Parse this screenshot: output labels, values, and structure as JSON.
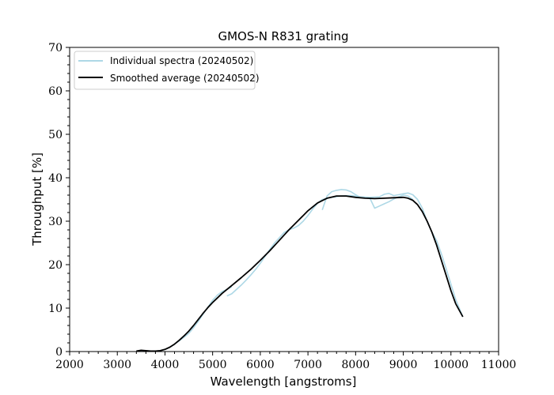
{
  "chart_data": {
    "type": "line",
    "title": "GMOS-N R831 grating",
    "xlabel": "Wavelength [angstroms]",
    "ylabel": "Throughput [%]",
    "xlim": [
      2000,
      11000
    ],
    "ylim": [
      0,
      70
    ],
    "xticks": [
      2000,
      3000,
      4000,
      5000,
      6000,
      7000,
      8000,
      9000,
      10000,
      11000
    ],
    "yticks": [
      0,
      10,
      20,
      30,
      40,
      50,
      60,
      70
    ],
    "grid": false,
    "legend_position": "top-left",
    "series": [
      {
        "name": "Individual spectra (20240502)",
        "color": "#add8e6",
        "segments": [
          {
            "x": [
              3400,
              3500,
              3600,
              3700,
              3800,
              3900,
              4000,
              4100,
              4200,
              4300,
              4400,
              4500,
              4600,
              4700,
              4800,
              4900,
              5000,
              5100,
              5200,
              5300,
              5400
            ],
            "y": [
              0.1,
              0.2,
              0.2,
              0.1,
              0.1,
              0.2,
              0.5,
              1.0,
              1.7,
              2.5,
              3.3,
              4.2,
              5.5,
              7.0,
              8.6,
              10.2,
              11.8,
              13.0,
              13.8,
              14.3,
              14.9
            ]
          },
          {
            "x": [
              5300,
              5400,
              5500,
              5600,
              5700,
              5800,
              5900,
              6000,
              6100,
              6200,
              6300,
              6400,
              6500,
              6600,
              6700,
              6800,
              6900,
              7000,
              7100,
              7200,
              7300
            ],
            "y": [
              12.8,
              13.3,
              14.3,
              15.3,
              16.4,
              17.6,
              18.9,
              20.3,
              21.9,
              23.5,
              25.0,
              26.2,
              27.4,
              28.0,
              28.4,
              29.0,
              30.0,
              31.3,
              32.8,
              34.1,
              35.0
            ]
          },
          {
            "x": [
              7300,
              7400,
              7500,
              7600,
              7700,
              7800,
              7900,
              8000,
              8100,
              8200,
              8300,
              8400,
              8500,
              8600,
              8700,
              8800,
              8900,
              9000,
              9100,
              9200
            ],
            "y": [
              32.6,
              35.8,
              36.8,
              37.1,
              37.3,
              37.2,
              36.8,
              36.1,
              35.5,
              35.4,
              35.3,
              33.0,
              33.5,
              34.0,
              34.5,
              35.1,
              35.6,
              36.0,
              35.8,
              35.0
            ]
          },
          {
            "x": [
              7300,
              7500,
              7700,
              7900,
              8100,
              8300,
              8500,
              8600,
              8700,
              8800,
              8900,
              9000,
              9100,
              9200,
              9300,
              9400,
              9500,
              9600,
              9700,
              9800,
              9900,
              10000,
              10100,
              10250
            ],
            "y": [
              35.0,
              35.5,
              35.8,
              35.9,
              35.6,
              35.5,
              35.6,
              36.2,
              36.4,
              35.9,
              36.1,
              36.3,
              36.5,
              36.1,
              35.0,
              33.0,
              30.0,
              27.5,
              25.5,
              22.5,
              19.0,
              15.5,
              12.0,
              8.0
            ]
          }
        ]
      },
      {
        "name": "Smoothed average (20240502)",
        "color": "#000000",
        "x": [
          3400,
          3500,
          3600,
          3700,
          3800,
          3900,
          4000,
          4100,
          4200,
          4300,
          4400,
          4500,
          4600,
          4700,
          4800,
          4900,
          5000,
          5200,
          5400,
          5600,
          5800,
          6000,
          6200,
          6400,
          6600,
          6800,
          7000,
          7200,
          7400,
          7600,
          7800,
          8000,
          8200,
          8400,
          8600,
          8800,
          9000,
          9100,
          9200,
          9300,
          9400,
          9500,
          9600,
          9700,
          9800,
          9900,
          10000,
          10100,
          10250
        ],
        "y": [
          0.1,
          0.3,
          0.2,
          0.1,
          0.1,
          0.2,
          0.5,
          1.0,
          1.7,
          2.6,
          3.6,
          4.7,
          6.0,
          7.4,
          8.8,
          10.1,
          11.3,
          13.4,
          15.2,
          17.0,
          18.9,
          21.0,
          23.2,
          25.6,
          28.0,
          30.2,
          32.4,
          34.2,
          35.3,
          35.8,
          35.8,
          35.5,
          35.3,
          35.2,
          35.3,
          35.4,
          35.5,
          35.3,
          34.8,
          33.8,
          32.2,
          30.0,
          27.5,
          24.5,
          21.0,
          17.5,
          14.0,
          11.0,
          8.0
        ]
      }
    ]
  }
}
